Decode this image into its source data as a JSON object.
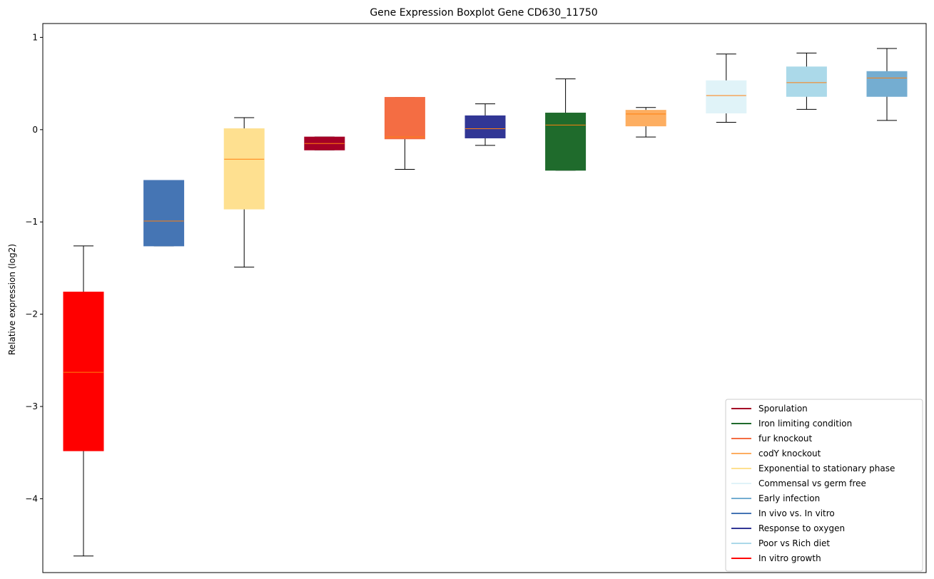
{
  "chart_data": {
    "type": "boxplot",
    "title": "Gene Expression Boxplot Gene CD630_11750",
    "xlabel": "",
    "ylabel": "Relative expression (log2)",
    "ylim": [
      -4.8,
      1.15
    ],
    "yticks": [
      1,
      0,
      -1,
      -2,
      -3,
      -4
    ],
    "ytick_labels": [
      "1",
      "0",
      "−1",
      "−2",
      "−3",
      "−4"
    ],
    "xticks": [],
    "grid": false,
    "median_color": "#ff7f0e",
    "legend_position": "lower-right",
    "boxes": [
      {
        "series": "In vitro growth",
        "color": "#ff0000",
        "whisker_low": -4.62,
        "q1": -3.48,
        "median": -2.63,
        "q3": -1.76,
        "whisker_high": -1.26
      },
      {
        "series": "In vivo vs. In vitro",
        "color": "#4575b4",
        "whisker_low": -1.26,
        "q1": -1.26,
        "median": -0.99,
        "q3": -0.55,
        "whisker_high": -0.55
      },
      {
        "series": "Exponential to stationary phase",
        "color": "#fee090",
        "whisker_low": -1.49,
        "q1": -0.86,
        "median": -0.32,
        "q3": 0.01,
        "whisker_high": 0.13
      },
      {
        "series": "Sporulation",
        "color": "#a50026",
        "whisker_low": -0.22,
        "q1": -0.22,
        "median": -0.15,
        "q3": -0.08,
        "whisker_high": -0.08
      },
      {
        "series": "fur knockout",
        "color": "#f46d43",
        "whisker_low": -0.43,
        "q1": -0.1,
        "median": -0.08,
        "q3": 0.35,
        "whisker_high": 0.35
      },
      {
        "series": "Response to oxygen",
        "color": "#313695",
        "whisker_low": -0.17,
        "q1": -0.09,
        "median": 0.01,
        "q3": 0.15,
        "whisker_high": 0.28
      },
      {
        "series": "Iron limiting condition",
        "color": "#1f6b2c",
        "whisker_low": -0.44,
        "q1": -0.44,
        "median": 0.05,
        "q3": 0.18,
        "whisker_high": 0.55
      },
      {
        "series": "codY knockout",
        "color": "#fdae61",
        "whisker_low": -0.08,
        "q1": 0.04,
        "median": 0.17,
        "q3": 0.21,
        "whisker_high": 0.24
      },
      {
        "series": "Commensal vs germ free",
        "color": "#e0f3f8",
        "whisker_low": 0.08,
        "q1": 0.18,
        "median": 0.37,
        "q3": 0.53,
        "whisker_high": 0.82
      },
      {
        "series": "Poor vs Rich diet",
        "color": "#abd9e9",
        "whisker_low": 0.22,
        "q1": 0.36,
        "median": 0.51,
        "q3": 0.68,
        "whisker_high": 0.83
      },
      {
        "series": "Early infection",
        "color": "#74add1",
        "whisker_low": 0.1,
        "q1": 0.36,
        "median": 0.56,
        "q3": 0.63,
        "whisker_high": 0.88
      }
    ],
    "legend": [
      {
        "label": "Sporulation",
        "color": "#a50026"
      },
      {
        "label": "Iron limiting condition",
        "color": "#1f6b2c"
      },
      {
        "label": "fur knockout",
        "color": "#f46d43"
      },
      {
        "label": "codY knockout",
        "color": "#fdae61"
      },
      {
        "label": "Exponential to stationary phase",
        "color": "#fee090"
      },
      {
        "label": "Commensal vs germ free",
        "color": "#e0f3f8"
      },
      {
        "label": "Early infection",
        "color": "#74add1"
      },
      {
        "label": "In vivo vs. In vitro",
        "color": "#4575b4"
      },
      {
        "label": "Response to oxygen",
        "color": "#313695"
      },
      {
        "label": "Poor vs Rich diet",
        "color": "#abd9e9"
      },
      {
        "label": "In vitro growth",
        "color": "#ff0000"
      }
    ]
  }
}
